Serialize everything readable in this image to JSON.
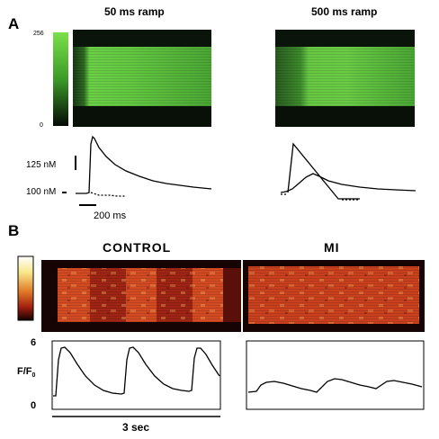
{
  "panel_a": {
    "letter": "A",
    "header_left": "50 ms ramp",
    "header_right": "500 ms ramp",
    "colorbar_max": "256",
    "colorbar_min": "0",
    "scale_125": "125 nM",
    "scale_100": "100 nM",
    "time_scale": "200 ms",
    "colors": {
      "green": "#5ec43a",
      "dark": "#0a1a0a"
    }
  },
  "panel_b": {
    "letter": "B",
    "header_left": "CONTROL",
    "header_right": "MI",
    "y_label_main": "F/F",
    "y_label_sub": "0",
    "y_tick_top": "6",
    "y_tick_bottom": "0",
    "time_scale": "3 sec",
    "colors": {
      "red": "#c8341a",
      "dark": "#140403",
      "hot": "#f0a060"
    }
  }
}
